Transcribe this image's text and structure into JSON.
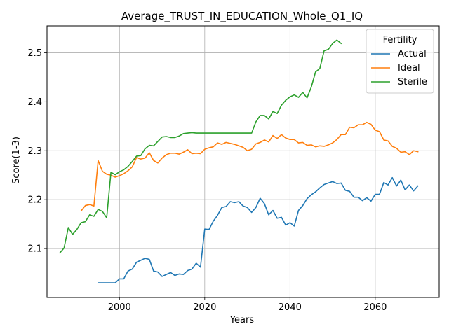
{
  "chart_data": {
    "type": "line",
    "title": "Average_TRUST_IN_EDUCATION_Whole_Q1_IQ",
    "xlabel": "Years",
    "ylabel": "Score(1-3)",
    "xlim": [
      1983,
      2075
    ],
    "ylim": [
      2.0,
      2.555
    ],
    "x_ticks": [
      2000,
      2020,
      2040,
      2060
    ],
    "x_tick_labels": [
      "2000",
      "2020",
      "2040",
      "2060"
    ],
    "y_ticks": [
      2.1,
      2.2,
      2.3,
      2.4,
      2.5
    ],
    "y_tick_labels": [
      "2.1",
      "2.2",
      "2.3",
      "2.4",
      "2.5"
    ],
    "grid": true,
    "legend": {
      "title": "Fertility",
      "placement": "top-right"
    },
    "series": [
      {
        "name": "Actual",
        "color": "#1f77b4",
        "x": [
          1995,
          1996,
          1997,
          1998,
          1999,
          2000,
          2001,
          2002,
          2003,
          2004,
          2005,
          2006,
          2007,
          2008,
          2009,
          2010,
          2011,
          2012,
          2013,
          2014,
          2015,
          2016,
          2017,
          2018,
          2019,
          2020,
          2021,
          2022,
          2023,
          2024,
          2025,
          2026,
          2027,
          2028,
          2029,
          2030,
          2031,
          2032,
          2033,
          2034,
          2035,
          2036,
          2037,
          2038,
          2039,
          2040,
          2041,
          2042,
          2043,
          2044,
          2045,
          2046,
          2047,
          2048,
          2049,
          2050,
          2051,
          2052,
          2053,
          2054,
          2055,
          2056,
          2057,
          2058,
          2059,
          2060,
          2061,
          2062,
          2063,
          2064,
          2065,
          2066,
          2067,
          2068,
          2069,
          2070
        ],
        "values": [
          2.03,
          2.03,
          2.03,
          2.03,
          2.03,
          2.038,
          2.038,
          2.054,
          2.058,
          2.072,
          2.076,
          2.08,
          2.078,
          2.054,
          2.052,
          2.043,
          2.047,
          2.051,
          2.045,
          2.048,
          2.047,
          2.055,
          2.058,
          2.07,
          2.062,
          2.14,
          2.139,
          2.156,
          2.168,
          2.184,
          2.186,
          2.196,
          2.194,
          2.196,
          2.187,
          2.184,
          2.174,
          2.184,
          2.203,
          2.192,
          2.169,
          2.178,
          2.162,
          2.164,
          2.148,
          2.153,
          2.146,
          2.178,
          2.188,
          2.202,
          2.21,
          2.216,
          2.224,
          2.231,
          2.234,
          2.237,
          2.233,
          2.234,
          2.219,
          2.217,
          2.205,
          2.205,
          2.198,
          2.204,
          2.197,
          2.211,
          2.211,
          2.235,
          2.23,
          2.245,
          2.228,
          2.24,
          2.22,
          2.23,
          2.218,
          2.228
        ]
      },
      {
        "name": "Ideal",
        "color": "#ff7f0e",
        "x": [
          1991,
          1992,
          1993,
          1994,
          1995,
          1996,
          1997,
          1998,
          1999,
          2000,
          2001,
          2002,
          2003,
          2004,
          2005,
          2006,
          2007,
          2008,
          2009,
          2010,
          2011,
          2012,
          2013,
          2014,
          2015,
          2016,
          2017,
          2018,
          2019,
          2020,
          2021,
          2022,
          2023,
          2024,
          2025,
          2026,
          2027,
          2028,
          2029,
          2030,
          2031,
          2032,
          2033,
          2034,
          2035,
          2036,
          2037,
          2038,
          2039,
          2040,
          2041,
          2042,
          2043,
          2044,
          2045,
          2046,
          2047,
          2048,
          2049,
          2050,
          2051,
          2052,
          2053,
          2054,
          2055,
          2056,
          2057,
          2058,
          2059,
          2060,
          2061,
          2062,
          2063,
          2064,
          2065,
          2066,
          2067,
          2068,
          2069,
          2070
        ],
        "values": [
          2.177,
          2.188,
          2.19,
          2.187,
          2.28,
          2.258,
          2.252,
          2.25,
          2.246,
          2.249,
          2.253,
          2.259,
          2.267,
          2.286,
          2.283,
          2.285,
          2.296,
          2.28,
          2.275,
          2.285,
          2.292,
          2.295,
          2.295,
          2.293,
          2.297,
          2.302,
          2.294,
          2.295,
          2.294,
          2.303,
          2.306,
          2.308,
          2.316,
          2.313,
          2.317,
          2.315,
          2.313,
          2.31,
          2.307,
          2.3,
          2.303,
          2.314,
          2.317,
          2.322,
          2.318,
          2.331,
          2.325,
          2.333,
          2.326,
          2.323,
          2.323,
          2.316,
          2.317,
          2.311,
          2.312,
          2.308,
          2.31,
          2.309,
          2.312,
          2.316,
          2.323,
          2.333,
          2.333,
          2.348,
          2.347,
          2.353,
          2.353,
          2.358,
          2.354,
          2.342,
          2.339,
          2.322,
          2.32,
          2.309,
          2.305,
          2.297,
          2.298,
          2.292,
          2.3,
          2.298
        ]
      },
      {
        "name": "Sterile",
        "color": "#2ca02c",
        "x": [
          1986,
          1987,
          1988,
          1989,
          1990,
          1991,
          1992,
          1993,
          1994,
          1995,
          1996,
          1997,
          1998,
          1999,
          2000,
          2001,
          2002,
          2003,
          2004,
          2005,
          2006,
          2007,
          2008,
          2009,
          2010,
          2011,
          2012,
          2013,
          2014,
          2015,
          2016,
          2017,
          2018,
          2019,
          2020,
          2021,
          2022,
          2023,
          2024,
          2025,
          2026,
          2027,
          2028,
          2029,
          2030,
          2031,
          2032,
          2033,
          2034,
          2035,
          2036,
          2037,
          2038,
          2039,
          2040,
          2041,
          2042,
          2043,
          2044,
          2045,
          2046,
          2047,
          2048,
          2049,
          2050,
          2051,
          2052
        ],
        "values": [
          2.091,
          2.101,
          2.143,
          2.129,
          2.139,
          2.153,
          2.155,
          2.169,
          2.166,
          2.18,
          2.176,
          2.163,
          2.256,
          2.251,
          2.257,
          2.261,
          2.268,
          2.278,
          2.289,
          2.29,
          2.304,
          2.311,
          2.31,
          2.319,
          2.328,
          2.329,
          2.327,
          2.327,
          2.33,
          2.335,
          2.336,
          2.337,
          2.336,
          2.336,
          2.336,
          2.336,
          2.336,
          2.336,
          2.336,
          2.336,
          2.336,
          2.336,
          2.336,
          2.336,
          2.336,
          2.336,
          2.359,
          2.372,
          2.372,
          2.365,
          2.38,
          2.376,
          2.393,
          2.403,
          2.41,
          2.414,
          2.409,
          2.419,
          2.408,
          2.43,
          2.461,
          2.468,
          2.504,
          2.507,
          2.519,
          2.526,
          2.519
        ]
      }
    ]
  }
}
